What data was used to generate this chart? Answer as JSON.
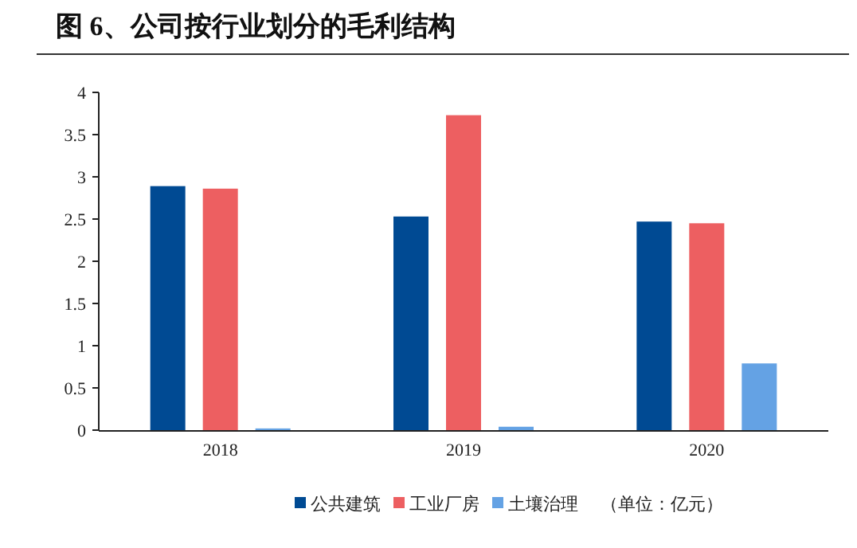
{
  "chart_data": {
    "type": "bar",
    "title": "图 6、公司按行业划分的毛利结构",
    "categories": [
      "2018",
      "2019",
      "2020"
    ],
    "series": [
      {
        "name": "公共建筑",
        "color": "#004a93",
        "values": [
          2.89,
          2.53,
          2.47
        ]
      },
      {
        "name": "工业厂房",
        "color": "#ed5f61",
        "values": [
          2.86,
          3.73,
          2.45
        ]
      },
      {
        "name": "土壤治理",
        "color": "#64a2e4",
        "values": [
          0.02,
          0.04,
          0.79
        ]
      }
    ],
    "ylim": [
      0,
      4
    ],
    "yticks": [
      0,
      {
        "value": 0.5,
        "label": "0.5"
      },
      1,
      {
        "value": 1.5,
        "label": "1.5"
      },
      2,
      {
        "value": 2.5,
        "label": "2.5"
      },
      3,
      {
        "value": 3.5,
        "label": "3.5"
      },
      4
    ],
    "legend": "bottom",
    "annotations": [
      "（单位：亿元）"
    ]
  }
}
